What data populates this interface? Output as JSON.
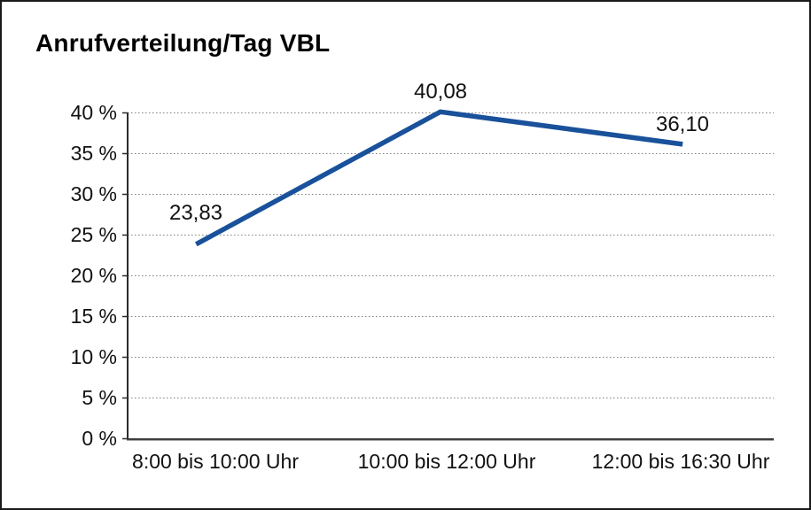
{
  "chart_data": {
    "type": "line",
    "title": "Anrufverteilung/Tag VBL",
    "categories": [
      "8:00 bis 10:00 Uhr",
      "10:00 bis 12:00 Uhr",
      "12:00 bis 16:30 Uhr"
    ],
    "series": [
      {
        "name": "Anrufverteilung/Tag VBL",
        "values": [
          23.83,
          40.08,
          36.1
        ]
      }
    ],
    "point_labels": [
      "23,83",
      "40,08",
      "36,10"
    ],
    "ylim": [
      0,
      40
    ],
    "ytick_step": 5,
    "ytick_labels": [
      "0 %",
      "5 %",
      "10 %",
      "15 %",
      "20 %",
      "25 %",
      "30 %",
      "35 %",
      "40 %"
    ],
    "xlabel": "",
    "ylabel": "",
    "grid": "horizontal-dotted",
    "legend_position": "none",
    "colors": {
      "line": "#19519B",
      "gridline": "#7f7f7f",
      "y_axis": "#2b2b2b",
      "x_axis_dark": "#3d3d3d",
      "x_axis_light": "#a6a6a6",
      "text": "#111111",
      "frame_border": "#1a1a1a",
      "background": "#ffffff"
    }
  }
}
